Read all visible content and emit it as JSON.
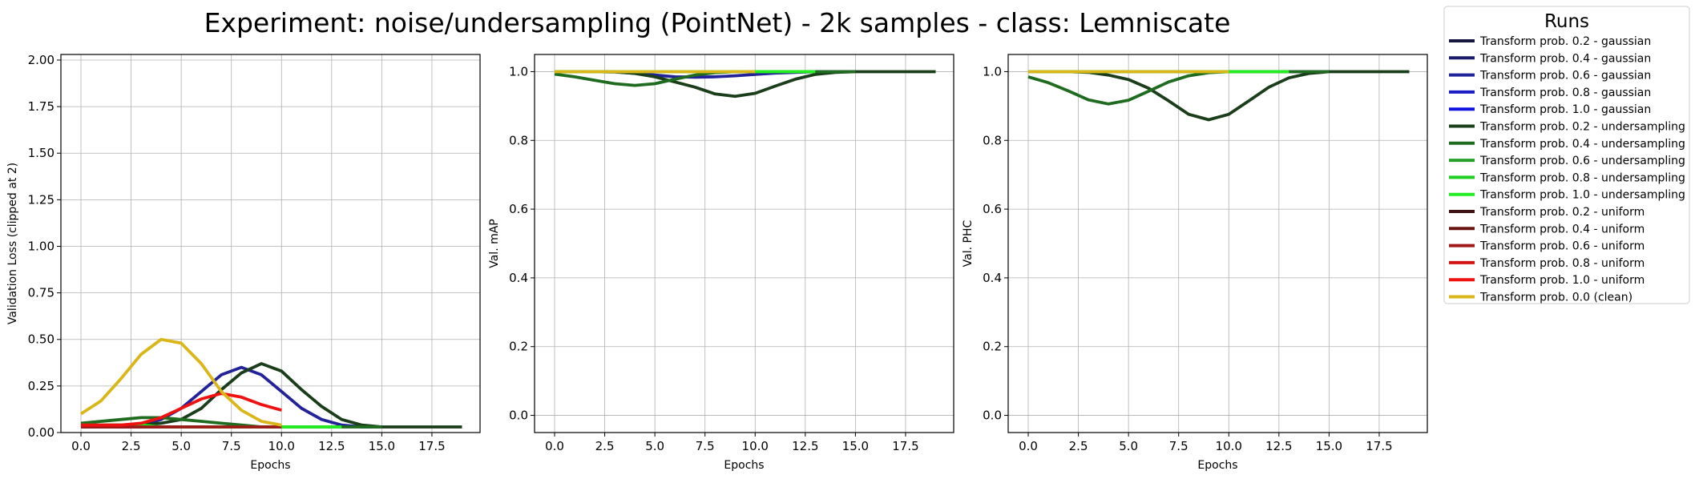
{
  "figure": {
    "suptitle": "Experiment: noise/undersampling (PointNet) - 2k samples - class: Lemniscate",
    "legend_title": "Runs",
    "legend_placement": "right"
  },
  "legend_entries": [
    {
      "label": "Transform prob. 0.2 - gaussian",
      "color": "#17173f"
    },
    {
      "label": "Transform prob. 0.4 - gaussian",
      "color": "#1b1b6b"
    },
    {
      "label": "Transform prob. 0.6 - gaussian",
      "color": "#22229a"
    },
    {
      "label": "Transform prob. 0.8 - gaussian",
      "color": "#1c1cc4"
    },
    {
      "label": "Transform prob. 1.0 - gaussian",
      "color": "#1212e0"
    },
    {
      "label": "Transform prob. 0.2 - undersampling",
      "color": "#1a3d1a"
    },
    {
      "label": "Transform prob. 0.4 - undersampling",
      "color": "#1f6b1f"
    },
    {
      "label": "Transform prob. 0.6 - undersampling",
      "color": "#27a027"
    },
    {
      "label": "Transform prob. 0.8 - undersampling",
      "color": "#1fce1f"
    },
    {
      "label": "Transform prob. 1.0 - undersampling",
      "color": "#22ee22"
    },
    {
      "label": "Transform prob. 0.2 - uniform",
      "color": "#3f1010"
    },
    {
      "label": "Transform prob. 0.4 - uniform",
      "color": "#6b1414"
    },
    {
      "label": "Transform prob. 0.6 - uniform",
      "color": "#a01818"
    },
    {
      "label": "Transform prob. 0.8 - uniform",
      "color": "#d41414"
    },
    {
      "label": "Transform prob. 1.0 - uniform",
      "color": "#f01010"
    },
    {
      "label": "Transform prob. 0.0 (clean)",
      "color": "#dab619"
    }
  ],
  "chart_data": [
    {
      "type": "line",
      "xlabel": "Epochs",
      "ylabel": "Validation Loss (clipped at 2)",
      "xlim": [
        -1,
        19.9
      ],
      "ylim": [
        0,
        2.03
      ],
      "xticks": [
        "0.0",
        "2.5",
        "5.0",
        "7.5",
        "10.0",
        "12.5",
        "15.0",
        "17.5"
      ],
      "yticks": [
        "0.00",
        "0.25",
        "0.50",
        "0.75",
        "1.00",
        "1.25",
        "1.50",
        "1.75",
        "2.00"
      ],
      "grid": true,
      "series": [
        {
          "color": "#17173f",
          "x": [
            0,
            1,
            2,
            3,
            4,
            5,
            6,
            7,
            8,
            9,
            10
          ],
          "y": [
            0.03,
            0.03,
            0.03,
            0.03,
            0.03,
            0.03,
            0.03,
            0.03,
            0.03,
            0.03,
            0.03
          ]
        },
        {
          "color": "#22229a",
          "x": [
            0,
            1,
            2,
            3,
            4,
            5,
            6,
            7,
            8,
            9,
            10,
            11,
            12,
            13,
            14,
            15
          ],
          "y": [
            0.04,
            0.04,
            0.03,
            0.04,
            0.07,
            0.13,
            0.22,
            0.31,
            0.35,
            0.31,
            0.22,
            0.13,
            0.07,
            0.04,
            0.03,
            0.03
          ]
        },
        {
          "color": "#1a3d1a",
          "x": [
            0,
            1,
            2,
            3,
            4,
            5,
            6,
            7,
            8,
            9,
            10,
            11,
            12,
            13,
            14,
            15,
            16,
            17,
            18,
            19
          ],
          "y": [
            0.04,
            0.04,
            0.04,
            0.04,
            0.05,
            0.07,
            0.13,
            0.23,
            0.32,
            0.37,
            0.33,
            0.23,
            0.14,
            0.07,
            0.04,
            0.03,
            0.03,
            0.03,
            0.03,
            0.03
          ]
        },
        {
          "color": "#1f6b1f",
          "x": [
            0,
            1,
            2,
            3,
            4,
            5,
            6,
            7,
            8,
            9,
            10,
            11,
            12,
            13,
            14,
            15
          ],
          "y": [
            0.05,
            0.06,
            0.07,
            0.08,
            0.08,
            0.07,
            0.06,
            0.05,
            0.04,
            0.03,
            0.03,
            0.03,
            0.03,
            0.03,
            0.03,
            0.03
          ]
        },
        {
          "color": "#22ee22",
          "x": [
            0,
            1,
            2,
            3,
            4,
            5,
            6,
            7,
            8,
            9,
            10,
            11,
            12,
            13
          ],
          "y": [
            0.04,
            0.04,
            0.04,
            0.04,
            0.03,
            0.03,
            0.03,
            0.03,
            0.03,
            0.03,
            0.03,
            0.03,
            0.03,
            0.03
          ]
        },
        {
          "color": "#a01818",
          "x": [
            0,
            1,
            2,
            3,
            4,
            5,
            6,
            7,
            8,
            9,
            10
          ],
          "y": [
            0.03,
            0.03,
            0.03,
            0.03,
            0.03,
            0.03,
            0.03,
            0.03,
            0.03,
            0.03,
            0.03
          ]
        },
        {
          "color": "#f01010",
          "x": [
            0,
            1,
            2,
            3,
            4,
            5,
            6,
            7,
            8,
            9,
            10
          ],
          "y": [
            0.04,
            0.04,
            0.04,
            0.05,
            0.08,
            0.13,
            0.18,
            0.21,
            0.19,
            0.15,
            0.12
          ]
        },
        {
          "color": "#dab619",
          "x": [
            0,
            1,
            2,
            3,
            4,
            5,
            6,
            7,
            8,
            9,
            10
          ],
          "y": [
            0.1,
            0.17,
            0.29,
            0.42,
            0.5,
            0.48,
            0.37,
            0.22,
            0.12,
            0.06,
            0.04
          ]
        }
      ]
    },
    {
      "type": "line",
      "xlabel": "Epochs",
      "ylabel": "Val. mAP",
      "xlim": [
        -1,
        19.9
      ],
      "ylim": [
        -0.05,
        1.05
      ],
      "xticks": [
        "0.0",
        "2.5",
        "5.0",
        "7.5",
        "10.0",
        "12.5",
        "15.0",
        "17.5"
      ],
      "yticks": [
        "0.0",
        "0.2",
        "0.4",
        "0.6",
        "0.8",
        "1.0"
      ],
      "grid": true,
      "series": [
        {
          "color": "#22229a",
          "x": [
            0,
            1,
            2,
            3,
            4,
            5,
            6,
            7,
            8,
            9,
            10,
            11,
            12,
            13,
            14,
            15
          ],
          "y": [
            1.0,
            1.0,
            1.0,
            1.0,
            0.995,
            0.99,
            0.985,
            0.984,
            0.985,
            0.988,
            0.992,
            0.996,
            0.998,
            1.0,
            1.0,
            1.0
          ]
        },
        {
          "color": "#1a3d1a",
          "x": [
            0,
            1,
            2,
            3,
            4,
            5,
            6,
            7,
            8,
            9,
            10,
            11,
            12,
            13,
            14,
            15,
            16,
            17,
            18,
            19
          ],
          "y": [
            1.0,
            1.0,
            1.0,
            0.999,
            0.995,
            0.985,
            0.97,
            0.955,
            0.935,
            0.928,
            0.937,
            0.958,
            0.978,
            0.992,
            0.998,
            1.0,
            1.0,
            1.0,
            1.0,
            1.0
          ]
        },
        {
          "color": "#1f6b1f",
          "x": [
            0,
            1,
            2,
            3,
            4,
            5,
            6,
            7,
            8,
            9,
            10,
            11,
            12,
            13,
            14,
            15
          ],
          "y": [
            0.993,
            0.985,
            0.975,
            0.965,
            0.96,
            0.965,
            0.978,
            0.99,
            0.997,
            1.0,
            1.0,
            1.0,
            1.0,
            1.0,
            1.0,
            1.0
          ]
        },
        {
          "color": "#22ee22",
          "x": [
            0,
            1,
            2,
            3,
            4,
            5,
            6,
            7,
            8,
            9,
            10,
            11,
            12,
            13
          ],
          "y": [
            1.0,
            1.0,
            1.0,
            1.0,
            1.0,
            1.0,
            1.0,
            1.0,
            1.0,
            1.0,
            1.0,
            1.0,
            1.0,
            1.0
          ]
        },
        {
          "color": "#dab619",
          "x": [
            0,
            1,
            2,
            3,
            4,
            5,
            6,
            7,
            8,
            9,
            10
          ],
          "y": [
            1.0,
            1.0,
            1.0,
            1.0,
            1.0,
            1.0,
            1.0,
            1.0,
            1.0,
            1.0,
            1.0
          ]
        }
      ]
    },
    {
      "type": "line",
      "xlabel": "Epochs",
      "ylabel": "Val. PHC",
      "xlim": [
        -1,
        19.9
      ],
      "ylim": [
        -0.05,
        1.05
      ],
      "xticks": [
        "0.0",
        "2.5",
        "5.0",
        "7.5",
        "10.0",
        "12.5",
        "15.0",
        "17.5"
      ],
      "yticks": [
        "0.0",
        "0.2",
        "0.4",
        "0.6",
        "0.8",
        "1.0"
      ],
      "grid": true,
      "series": [
        {
          "color": "#22229a",
          "x": [
            0,
            1,
            2,
            3,
            4,
            5,
            6,
            7,
            8,
            9,
            10,
            11,
            12,
            13,
            14,
            15
          ],
          "y": [
            1.0,
            1.0,
            1.0,
            1.0,
            1.0,
            1.0,
            1.0,
            1.0,
            1.0,
            1.0,
            1.0,
            1.0,
            1.0,
            1.0,
            1.0,
            1.0
          ]
        },
        {
          "color": "#1a3d1a",
          "x": [
            0,
            1,
            2,
            3,
            4,
            5,
            6,
            7,
            8,
            9,
            10,
            11,
            12,
            13,
            14,
            15,
            16,
            17,
            18,
            19
          ],
          "y": [
            1.0,
            1.0,
            1.0,
            0.998,
            0.99,
            0.977,
            0.952,
            0.915,
            0.876,
            0.86,
            0.876,
            0.915,
            0.955,
            0.982,
            0.995,
            1.0,
            1.0,
            1.0,
            1.0,
            1.0
          ]
        },
        {
          "color": "#1f6b1f",
          "x": [
            0,
            1,
            2,
            3,
            4,
            5,
            6,
            7,
            8,
            9,
            10,
            11,
            12,
            13,
            14,
            15
          ],
          "y": [
            0.985,
            0.968,
            0.944,
            0.918,
            0.906,
            0.917,
            0.943,
            0.97,
            0.988,
            0.997,
            1.0,
            1.0,
            1.0,
            1.0,
            1.0,
            1.0
          ]
        },
        {
          "color": "#22ee22",
          "x": [
            0,
            1,
            2,
            3,
            4,
            5,
            6,
            7,
            8,
            9,
            10,
            11,
            12,
            13
          ],
          "y": [
            1.0,
            1.0,
            1.0,
            1.0,
            1.0,
            1.0,
            1.0,
            1.0,
            1.0,
            1.0,
            1.0,
            1.0,
            1.0,
            1.0
          ]
        },
        {
          "color": "#dab619",
          "x": [
            0,
            1,
            2,
            3,
            4,
            5,
            6,
            7,
            8,
            9,
            10
          ],
          "y": [
            1.0,
            1.0,
            1.0,
            1.0,
            1.0,
            1.0,
            1.0,
            1.0,
            1.0,
            1.0,
            1.0
          ]
        }
      ]
    }
  ]
}
